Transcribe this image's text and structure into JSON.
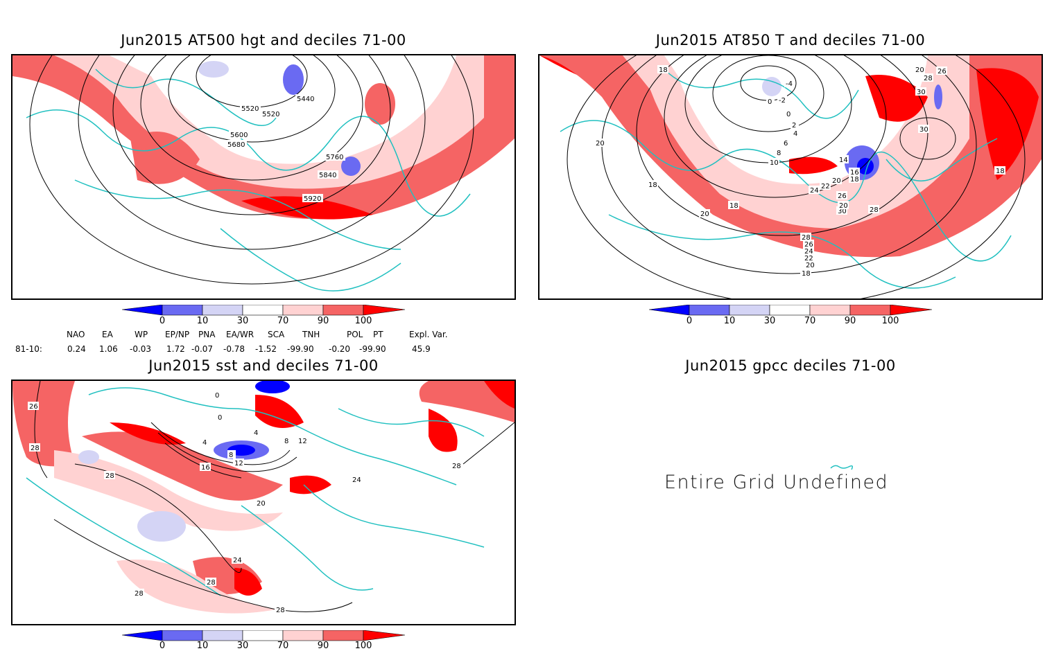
{
  "panels": [
    {
      "title": "Jun2015 AT500 hgt and deciles 71-00",
      "contour_labels": [
        "5440",
        "5520",
        "5520",
        "5600",
        "5680",
        "5760",
        "5840",
        "5920"
      ]
    },
    {
      "title": "Jun2015 AT850 T and deciles 71-00",
      "contour_labels": [
        "20",
        "18",
        "-4",
        "0",
        "-2",
        "0",
        "2",
        "4",
        "6",
        "8",
        "10",
        "14",
        "16",
        "18",
        "20",
        "22",
        "24",
        "26",
        "28",
        "30",
        "30",
        "20",
        "28",
        "26",
        "30",
        "18",
        "18",
        "20",
        "18",
        "28",
        "26",
        "24",
        "22",
        "20",
        "18",
        "20"
      ]
    },
    {
      "title": "Jun2015 sst and deciles 71-00",
      "contour_labels": [
        "28",
        "28",
        "0",
        "0",
        "4",
        "4",
        "8",
        "8",
        "12",
        "12",
        "16",
        "20",
        "24",
        "24",
        "28",
        "28",
        "28",
        "28",
        "26"
      ]
    },
    {
      "title": "Jun2015 gpcc deciles 71-00",
      "message": "Entire Grid Undefined"
    }
  ],
  "colorbar": {
    "labels": [
      "0",
      "10",
      "30",
      "70",
      "90",
      "100"
    ],
    "colors": [
      "#0000ff",
      "#6a6af2",
      "#d4d4f5",
      "#ffffff",
      "#ffd2d2",
      "#f56464",
      "#ff0000"
    ]
  },
  "indices": {
    "headers": [
      "NAO",
      "EA",
      "WP",
      "EP/NP",
      "PNA",
      "EA/WR",
      "SCA",
      "TNH",
      "POL",
      "PT",
      "Expl. Var."
    ],
    "row_label": "81-10:",
    "values": [
      "0.24",
      "1.06",
      "-0.03",
      "1.72",
      "-0.07",
      "-0.78",
      "-1.52",
      "-99.90",
      "-0.20",
      "-99.90",
      "45.9"
    ]
  },
  "colors": {
    "coast": "#20c0c0",
    "contour": "#000000",
    "frame": "#000000"
  }
}
